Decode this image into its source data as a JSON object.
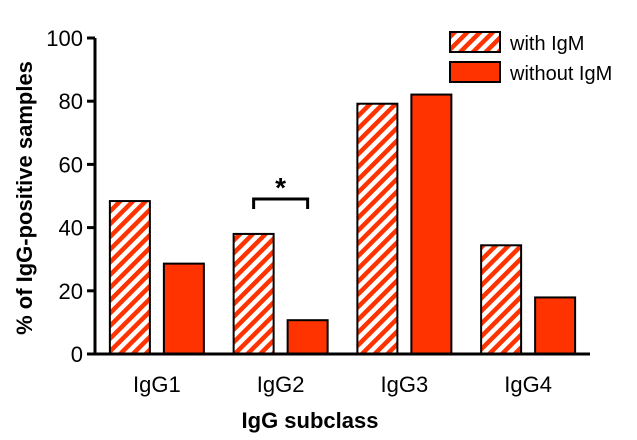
{
  "chart_data": {
    "type": "bar",
    "categories": [
      "IgG1",
      "IgG2",
      "IgG3",
      "IgG4"
    ],
    "series": [
      {
        "name": "with IgM",
        "values": [
          48.4,
          38.0,
          79.2,
          34.4
        ],
        "fill": "hatched",
        "color": "#ff3300"
      },
      {
        "name": "without IgM",
        "values": [
          28.6,
          10.7,
          82.1,
          17.9
        ],
        "fill": "solid",
        "color": "#ff3300"
      }
    ],
    "xlabel": "IgG subclass",
    "ylabel": "% of IgG-positive samples",
    "ylim": [
      0,
      100
    ],
    "yticks": [
      0,
      20,
      40,
      60,
      80,
      100
    ],
    "grid": false,
    "legend": "top-right",
    "annotations": [
      {
        "text": "*",
        "category": "IgG2",
        "type": "significance-bracket"
      }
    ]
  }
}
